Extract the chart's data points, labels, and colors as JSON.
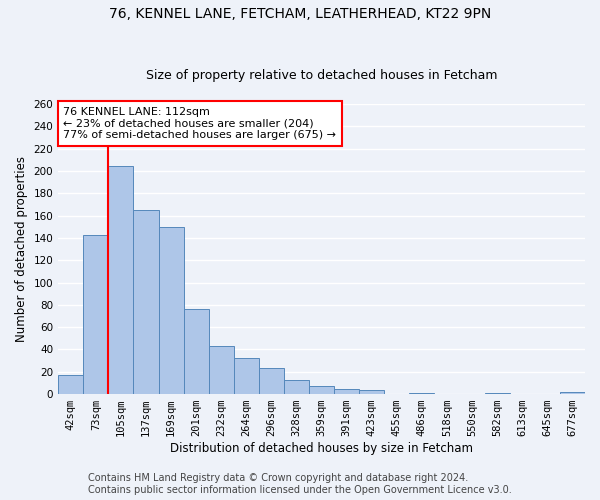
{
  "title_line1": "76, KENNEL LANE, FETCHAM, LEATHERHEAD, KT22 9PN",
  "title_line2": "Size of property relative to detached houses in Fetcham",
  "xlabel": "Distribution of detached houses by size in Fetcham",
  "ylabel": "Number of detached properties",
  "categories": [
    "42sqm",
    "73sqm",
    "105sqm",
    "137sqm",
    "169sqm",
    "201sqm",
    "232sqm",
    "264sqm",
    "296sqm",
    "328sqm",
    "359sqm",
    "391sqm",
    "423sqm",
    "455sqm",
    "486sqm",
    "518sqm",
    "550sqm",
    "582sqm",
    "613sqm",
    "645sqm",
    "677sqm"
  ],
  "values": [
    17,
    143,
    204,
    165,
    150,
    76,
    43,
    32,
    23,
    13,
    7,
    5,
    4,
    0,
    1,
    0,
    0,
    1,
    0,
    0,
    2
  ],
  "bar_color": "#aec6e8",
  "bar_edge_color": "#5588bb",
  "red_line_index": 2,
  "annotation_text": "76 KENNEL LANE: 112sqm\n← 23% of detached houses are smaller (204)\n77% of semi-detached houses are larger (675) →",
  "annotation_box_color": "white",
  "annotation_box_edge": "red",
  "ylim": [
    0,
    260
  ],
  "yticks": [
    0,
    20,
    40,
    60,
    80,
    100,
    120,
    140,
    160,
    180,
    200,
    220,
    240,
    260
  ],
  "footer_line1": "Contains HM Land Registry data © Crown copyright and database right 2024.",
  "footer_line2": "Contains public sector information licensed under the Open Government Licence v3.0.",
  "background_color": "#eef2f9",
  "grid_color": "white",
  "title_fontsize": 10,
  "subtitle_fontsize": 9,
  "axis_label_fontsize": 8.5,
  "tick_fontsize": 7.5,
  "footer_fontsize": 7,
  "annotation_fontsize": 8
}
